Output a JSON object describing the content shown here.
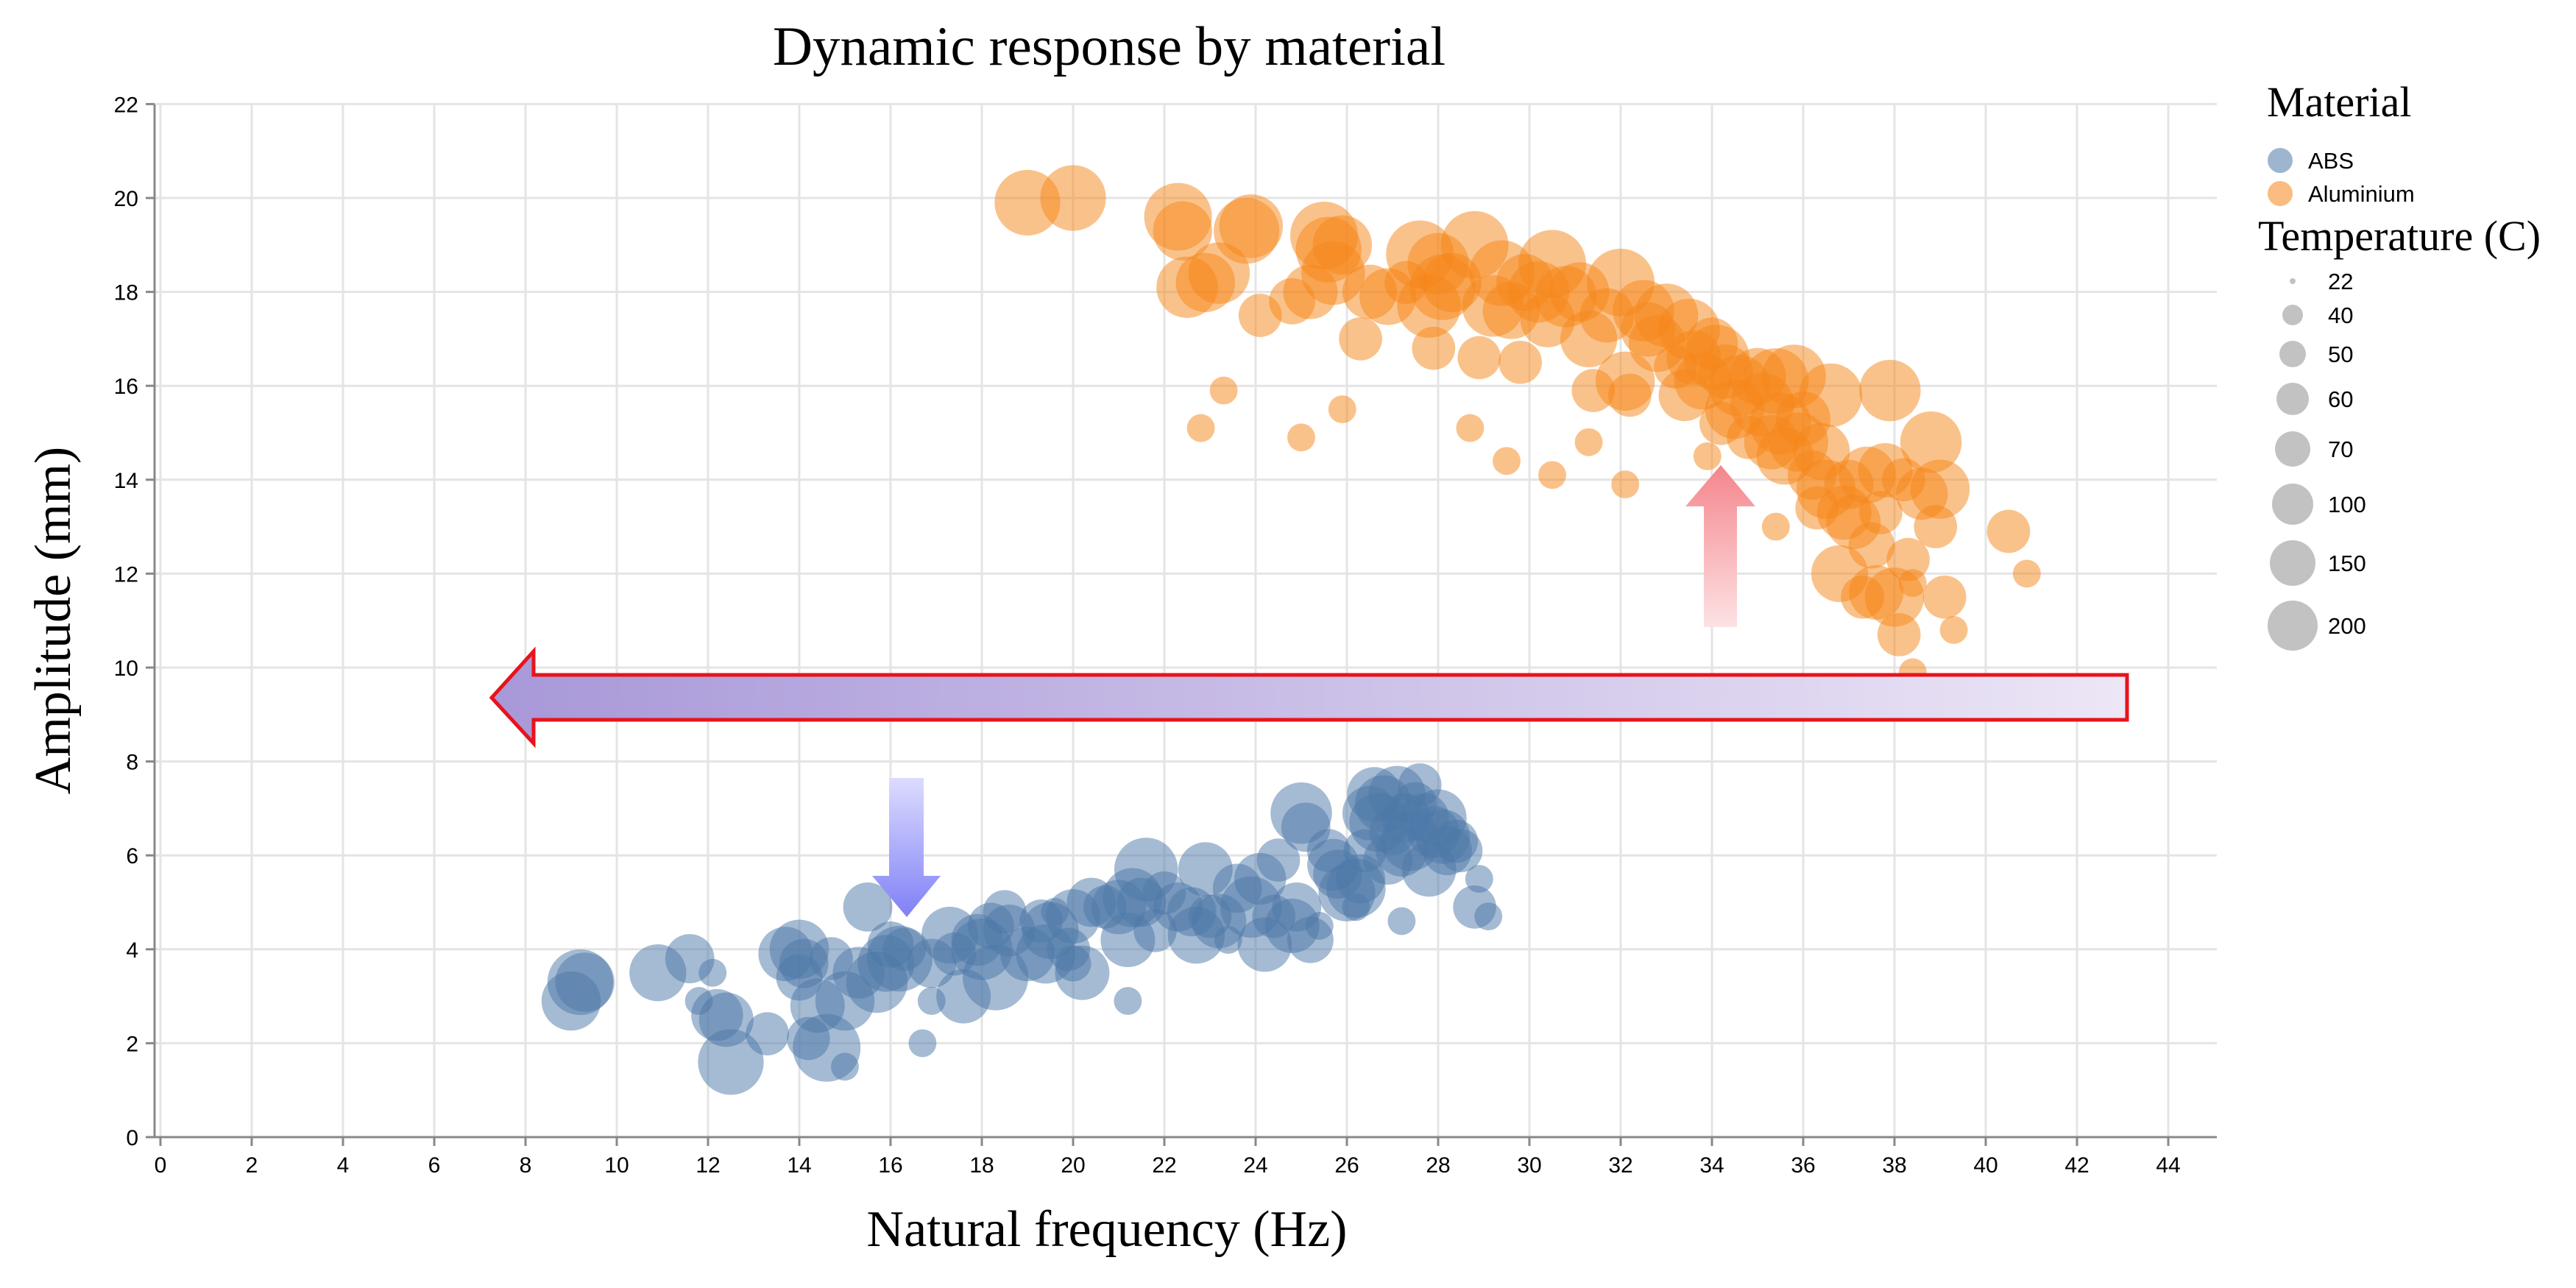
{
  "chart_data": {
    "type": "scatter",
    "title": "Dynamic response by material",
    "xlabel": "Natural frequency (Hz)",
    "ylabel": "Amplitude (mm)",
    "xlim": [
      0,
      45
    ],
    "ylim": [
      0,
      22
    ],
    "x_ticks": [
      "0",
      "2",
      "4",
      "6",
      "8",
      "10",
      "12",
      "14",
      "16",
      "18",
      "20",
      "22",
      "24",
      "26",
      "28",
      "30",
      "32",
      "34",
      "36",
      "38",
      "40",
      "42",
      "44"
    ],
    "y_ticks": [
      "0",
      "2",
      "4",
      "6",
      "8",
      "10",
      "12",
      "14",
      "16",
      "18",
      "20",
      "22"
    ],
    "grid": true,
    "legend": {
      "color_title": "Material",
      "size_title": "Temperature (C)",
      "placement": "right",
      "materials": [
        {
          "name": "ABS",
          "color": "#4c78a8"
        },
        {
          "name": "Aluminium",
          "color": "#f58518"
        }
      ],
      "sizes": [
        {
          "label": "22",
          "value": 22
        },
        {
          "label": "40",
          "value": 40
        },
        {
          "label": "50",
          "value": 50
        },
        {
          "label": "60",
          "value": 60
        },
        {
          "label": "70",
          "value": 70
        },
        {
          "label": "100",
          "value": 100
        },
        {
          "label": "150",
          "value": 150
        },
        {
          "label": "200",
          "value": 200
        }
      ]
    },
    "series": [
      {
        "name": "ABS",
        "color": "#4c78a8",
        "points": [
          [
            9.0,
            2.9,
            120
          ],
          [
            9.2,
            3.3,
            150
          ],
          [
            9.3,
            3.3,
            120
          ],
          [
            10.9,
            3.5,
            110
          ],
          [
            11.6,
            3.8,
            80
          ],
          [
            11.8,
            2.9,
            22
          ],
          [
            12.1,
            3.5,
            22
          ],
          [
            12.2,
            2.6,
            90
          ],
          [
            12.4,
            2.5,
            100
          ],
          [
            12.5,
            1.6,
            150
          ],
          [
            13.3,
            2.2,
            60
          ],
          [
            13.7,
            3.9,
            100
          ],
          [
            14.0,
            4.0,
            120
          ],
          [
            14.1,
            3.7,
            80
          ],
          [
            14.0,
            3.4,
            70
          ],
          [
            14.2,
            2.1,
            60
          ],
          [
            14.4,
            2.8,
            100
          ],
          [
            14.6,
            1.9,
            160
          ],
          [
            14.7,
            3.8,
            60
          ],
          [
            15.0,
            2.9,
            120
          ],
          [
            15.0,
            1.5,
            22
          ],
          [
            15.3,
            3.5,
            90
          ],
          [
            15.5,
            4.9,
            80
          ],
          [
            15.7,
            3.3,
            130
          ],
          [
            15.9,
            3.7,
            110
          ],
          [
            16.0,
            4.1,
            70
          ],
          [
            16.2,
            3.8,
            150
          ],
          [
            16.3,
            4.0,
            60
          ],
          [
            16.7,
            2.0,
            22
          ],
          [
            16.9,
            3.7,
            80
          ],
          [
            17.3,
            4.3,
            110
          ],
          [
            17.4,
            3.9,
            60
          ],
          [
            17.6,
            3.0,
            100
          ],
          [
            17.9,
            4.2,
            90
          ],
          [
            18.0,
            4.0,
            130
          ],
          [
            18.3,
            3.4,
            150
          ],
          [
            18.2,
            4.5,
            70
          ],
          [
            18.5,
            4.8,
            60
          ],
          [
            18.6,
            4.4,
            90
          ],
          [
            19.0,
            3.9,
            100
          ],
          [
            19.3,
            4.6,
            60
          ],
          [
            19.4,
            3.9,
            120
          ],
          [
            19.5,
            4.4,
            110
          ],
          [
            19.6,
            4.8,
            22
          ],
          [
            19.9,
            4.0,
            60
          ],
          [
            20.0,
            3.7,
            40
          ],
          [
            20.0,
            4.7,
            100
          ],
          [
            20.2,
            3.5,
            100
          ],
          [
            20.4,
            5.0,
            80
          ],
          [
            20.7,
            4.9,
            60
          ],
          [
            21.0,
            4.9,
            100
          ],
          [
            21.2,
            4.2,
            100
          ],
          [
            21.3,
            5.1,
            120
          ],
          [
            21.5,
            5.0,
            80
          ],
          [
            21.6,
            5.7,
            140
          ],
          [
            21.8,
            4.4,
            60
          ],
          [
            22.0,
            5.2,
            60
          ],
          [
            22.3,
            4.9,
            80
          ],
          [
            22.6,
            4.8,
            80
          ],
          [
            22.7,
            4.3,
            110
          ],
          [
            22.9,
            5.7,
            100
          ],
          [
            23.0,
            4.7,
            60
          ],
          [
            23.2,
            4.6,
            100
          ],
          [
            23.6,
            5.3,
            80
          ],
          [
            23.9,
            4.9,
            130
          ],
          [
            24.1,
            5.5,
            90
          ],
          [
            24.2,
            4.1,
            100
          ],
          [
            24.4,
            4.7,
            60
          ],
          [
            24.5,
            5.9,
            60
          ],
          [
            24.8,
            4.5,
            100
          ],
          [
            24.9,
            4.9,
            80
          ],
          [
            25.0,
            6.9,
            130
          ],
          [
            25.1,
            6.6,
            80
          ],
          [
            25.2,
            4.2,
            70
          ],
          [
            25.4,
            4.5,
            22
          ],
          [
            25.6,
            6.1,
            60
          ],
          [
            25.7,
            5.8,
            90
          ],
          [
            25.8,
            5.6,
            80
          ],
          [
            26.0,
            5.2,
            110
          ],
          [
            26.2,
            5.3,
            120
          ],
          [
            26.3,
            5.5,
            80
          ],
          [
            26.4,
            6.1,
            60
          ],
          [
            26.5,
            6.9,
            100
          ],
          [
            26.6,
            7.3,
            100
          ],
          [
            26.7,
            6.7,
            120
          ],
          [
            26.8,
            7.1,
            110
          ],
          [
            26.9,
            5.9,
            80
          ],
          [
            27.0,
            6.5,
            70
          ],
          [
            27.1,
            7.3,
            110
          ],
          [
            27.2,
            6.1,
            90
          ],
          [
            27.2,
            4.6,
            22
          ],
          [
            27.3,
            6.8,
            80
          ],
          [
            27.4,
            6.3,
            120
          ],
          [
            27.5,
            7.1,
            60
          ],
          [
            27.6,
            7.5,
            60
          ],
          [
            27.7,
            6.8,
            80
          ],
          [
            27.8,
            5.7,
            100
          ],
          [
            27.9,
            6.5,
            90
          ],
          [
            28.0,
            6.8,
            110
          ],
          [
            28.1,
            6.4,
            100
          ],
          [
            28.2,
            6.1,
            80
          ],
          [
            28.4,
            6.3,
            60
          ],
          [
            28.5,
            6.1,
            60
          ],
          [
            28.8,
            4.9,
            60
          ],
          [
            28.9,
            5.5,
            22
          ],
          [
            29.1,
            4.7,
            22
          ],
          [
            16.9,
            2.9,
            22
          ],
          [
            21.2,
            2.9,
            22
          ],
          [
            23.4,
            4.2,
            22
          ],
          [
            26.2,
            4.9,
            22
          ]
        ]
      },
      {
        "name": "Aluminium",
        "color": "#f58518",
        "points": [
          [
            19.0,
            19.9,
            150
          ],
          [
            20.0,
            20.0,
            150
          ],
          [
            22.3,
            19.6,
            160
          ],
          [
            22.4,
            19.3,
            120
          ],
          [
            22.5,
            18.1,
            130
          ],
          [
            22.9,
            18.2,
            120
          ],
          [
            23.2,
            18.4,
            130
          ],
          [
            23.8,
            19.3,
            150
          ],
          [
            23.9,
            19.4,
            140
          ],
          [
            24.1,
            17.5,
            60
          ],
          [
            24.8,
            17.8,
            70
          ],
          [
            25.2,
            18.0,
            100
          ],
          [
            25.5,
            19.2,
            160
          ],
          [
            25.6,
            18.9,
            150
          ],
          [
            25.7,
            18.4,
            140
          ],
          [
            25.9,
            19.0,
            120
          ],
          [
            26.3,
            17.0,
            60
          ],
          [
            26.5,
            18.0,
            100
          ],
          [
            26.9,
            17.9,
            110
          ],
          [
            27.3,
            18.2,
            60
          ],
          [
            27.6,
            18.8,
            160
          ],
          [
            27.8,
            17.7,
            140
          ],
          [
            27.9,
            16.8,
            60
          ],
          [
            28.0,
            18.6,
            130
          ],
          [
            28.1,
            18.1,
            150
          ],
          [
            28.3,
            18.2,
            120
          ],
          [
            28.8,
            19.0,
            160
          ],
          [
            28.9,
            16.6,
            60
          ],
          [
            29.2,
            17.7,
            130
          ],
          [
            29.4,
            18.4,
            150
          ],
          [
            29.6,
            17.6,
            110
          ],
          [
            29.8,
            16.5,
            60
          ],
          [
            29.9,
            18.2,
            110
          ],
          [
            30.2,
            18.0,
            130
          ],
          [
            30.4,
            17.4,
            100
          ],
          [
            30.5,
            18.6,
            160
          ],
          [
            30.8,
            17.9,
            130
          ],
          [
            31.1,
            18.0,
            120
          ],
          [
            31.3,
            17.0,
            110
          ],
          [
            31.4,
            15.9,
            60
          ],
          [
            31.7,
            17.5,
            100
          ],
          [
            32.0,
            18.2,
            160
          ],
          [
            32.1,
            16.1,
            120
          ],
          [
            32.2,
            15.8,
            60
          ],
          [
            32.5,
            17.6,
            130
          ],
          [
            32.6,
            17.2,
            100
          ],
          [
            32.8,
            16.9,
            110
          ],
          [
            33.0,
            17.5,
            140
          ],
          [
            33.2,
            16.4,
            60
          ],
          [
            33.4,
            15.8,
            90
          ],
          [
            33.5,
            17.2,
            130
          ],
          [
            33.6,
            16.6,
            100
          ],
          [
            33.8,
            16.1,
            110
          ],
          [
            34.0,
            16.9,
            90
          ],
          [
            34.1,
            16.6,
            150
          ],
          [
            34.2,
            15.2,
            60
          ],
          [
            34.3,
            16.3,
            100
          ],
          [
            34.5,
            15.5,
            120
          ],
          [
            34.6,
            16.0,
            130
          ],
          [
            34.8,
            14.9,
            60
          ],
          [
            35.0,
            16.2,
            110
          ],
          [
            35.1,
            15.6,
            140
          ],
          [
            35.3,
            14.8,
            100
          ],
          [
            35.4,
            16.1,
            150
          ],
          [
            35.5,
            15.2,
            130
          ],
          [
            35.6,
            14.5,
            110
          ],
          [
            35.8,
            16.2,
            140
          ],
          [
            35.9,
            14.8,
            120
          ],
          [
            36.0,
            15.3,
            100
          ],
          [
            36.2,
            14.1,
            80
          ],
          [
            36.3,
            13.4,
            60
          ],
          [
            36.4,
            14.6,
            110
          ],
          [
            36.5,
            13.8,
            120
          ],
          [
            36.6,
            15.8,
            140
          ],
          [
            36.8,
            12.0,
            110
          ],
          [
            36.9,
            13.3,
            100
          ],
          [
            37.0,
            13.9,
            80
          ],
          [
            37.1,
            13.1,
            100
          ],
          [
            37.3,
            11.5,
            60
          ],
          [
            37.4,
            14.1,
            110
          ],
          [
            37.5,
            12.6,
            70
          ],
          [
            37.6,
            11.6,
            100
          ],
          [
            37.7,
            13.3,
            60
          ],
          [
            37.8,
            14.2,
            100
          ],
          [
            37.9,
            15.9,
            130
          ],
          [
            38.0,
            11.5,
            120
          ],
          [
            38.1,
            10.7,
            60
          ],
          [
            38.2,
            14.0,
            60
          ],
          [
            38.3,
            12.3,
            60
          ],
          [
            38.4,
            11.8,
            22
          ],
          [
            38.6,
            13.7,
            90
          ],
          [
            38.8,
            14.8,
            130
          ],
          [
            38.9,
            13.0,
            60
          ],
          [
            39.0,
            13.8,
            120
          ],
          [
            39.1,
            11.5,
            60
          ],
          [
            39.3,
            10.8,
            22
          ],
          [
            40.5,
            12.9,
            60
          ],
          [
            40.9,
            12.0,
            22
          ],
          [
            23.3,
            15.9,
            22
          ],
          [
            22.8,
            15.1,
            22
          ],
          [
            25.0,
            14.9,
            22
          ],
          [
            25.9,
            15.5,
            22
          ],
          [
            28.7,
            15.1,
            22
          ],
          [
            29.5,
            14.4,
            22
          ],
          [
            30.5,
            14.1,
            22
          ],
          [
            31.3,
            14.8,
            22
          ],
          [
            32.1,
            13.9,
            22
          ],
          [
            33.9,
            14.5,
            22
          ],
          [
            35.4,
            13.0,
            22
          ],
          [
            38.4,
            9.9,
            22
          ]
        ]
      }
    ],
    "annotations": [
      {
        "type": "arrow",
        "direction": "left",
        "fill": "gradient-purple",
        "outline": "#e8131b"
      },
      {
        "type": "arrow",
        "direction": "up",
        "fill": "gradient-pink"
      },
      {
        "type": "arrow",
        "direction": "down",
        "fill": "gradient-blue"
      }
    ]
  }
}
